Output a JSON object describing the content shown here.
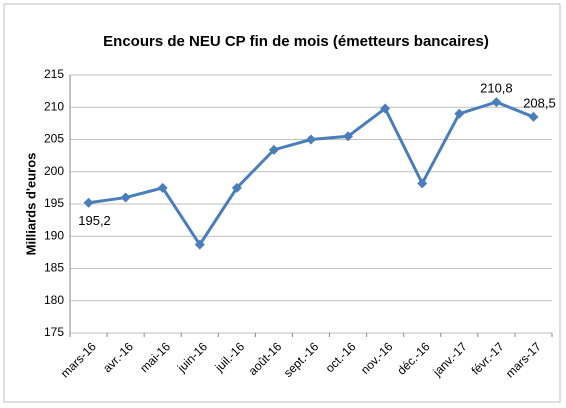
{
  "chart_data": {
    "type": "line",
    "title": "Encours de NEU CP fin de mois (émetteurs bancaires)",
    "y_label": "Milliards d'euros",
    "categories": [
      "mars-16",
      "avr.-16",
      "mai-16",
      "juin-16",
      "juil.-16",
      "août-16",
      "sept.-16",
      "oct.-16",
      "nov.-16",
      "déc.-16",
      "janv.-17",
      "févr.-17",
      "mars-17"
    ],
    "series": [
      {
        "name": "Encours",
        "color": "#4a7ebb",
        "values": [
          195.2,
          196.0,
          197.5,
          188.7,
          197.5,
          203.4,
          205.0,
          205.5,
          209.8,
          198.2,
          209.0,
          210.8,
          208.5
        ],
        "value_labels": [
          "195,2",
          null,
          null,
          null,
          null,
          null,
          null,
          null,
          null,
          null,
          null,
          "210,8",
          "208,5"
        ]
      }
    ],
    "ylim": [
      175,
      215
    ],
    "yticks": [
      175,
      180,
      185,
      190,
      195,
      200,
      205,
      210,
      215
    ],
    "grid": true
  }
}
